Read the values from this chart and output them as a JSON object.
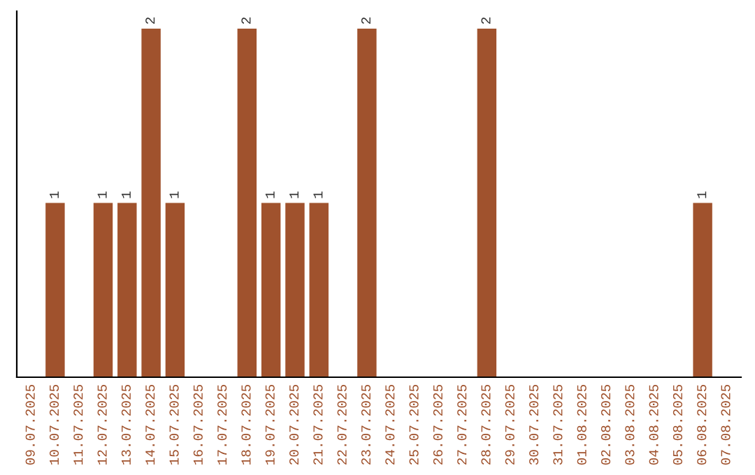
{
  "chart_data": {
    "type": "bar",
    "categories": [
      "09.07.2025",
      "10.07.2025",
      "11.07.2025",
      "12.07.2025",
      "13.07.2025",
      "14.07.2025",
      "15.07.2025",
      "16.07.2025",
      "17.07.2025",
      "18.07.2025",
      "19.07.2025",
      "20.07.2025",
      "21.07.2025",
      "22.07.2025",
      "23.07.2025",
      "24.07.2025",
      "25.07.2025",
      "26.07.2025",
      "27.07.2025",
      "28.07.2025",
      "29.07.2025",
      "30.07.2025",
      "31.07.2025",
      "01.08.2025",
      "02.08.2025",
      "03.08.2025",
      "04.08.2025",
      "05.08.2025",
      "06.08.2025",
      "07.08.2025"
    ],
    "values": [
      0,
      1,
      0,
      1,
      1,
      2,
      1,
      0,
      0,
      2,
      1,
      1,
      1,
      0,
      2,
      0,
      0,
      0,
      0,
      2,
      0,
      0,
      0,
      0,
      0,
      0,
      0,
      0,
      1,
      0
    ],
    "value_labels": [
      null,
      "1",
      null,
      "1",
      "1",
      "2",
      "1",
      null,
      null,
      "2",
      "1",
      "1",
      "1",
      null,
      "2",
      null,
      null,
      null,
      null,
      "2",
      null,
      null,
      null,
      null,
      null,
      null,
      null,
      null,
      "1",
      null
    ],
    "color": "#a0522d",
    "ylim": [
      0,
      2.1
    ],
    "tick_labels": "x",
    "grid": false,
    "legend": false
  }
}
